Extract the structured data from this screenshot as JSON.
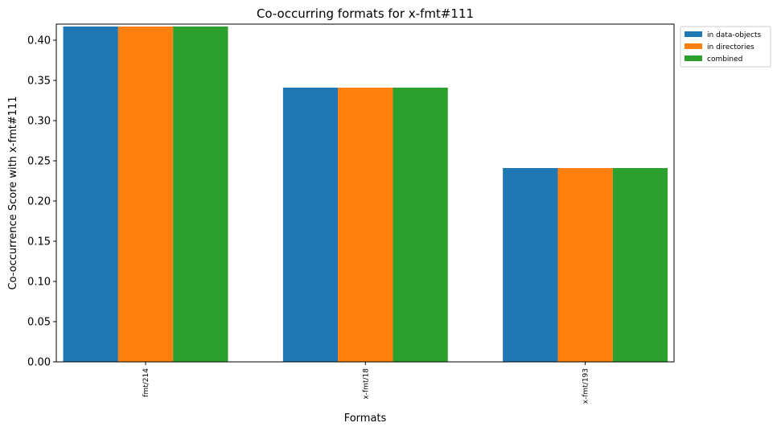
{
  "chart_data": {
    "type": "bar",
    "title": "Co-occurring formats for x-fmt#111",
    "xlabel": "Formats",
    "ylabel": "Co-occurrence Score with x-fmt#111",
    "categories": [
      "fmt/214",
      "x-fmt/18",
      "x-fmt/193"
    ],
    "series": [
      {
        "name": "in data-objects",
        "color": "#1f77b4",
        "values": [
          0.417,
          0.341,
          0.241
        ]
      },
      {
        "name": "in directories",
        "color": "#ff7f0e",
        "values": [
          0.417,
          0.341,
          0.241
        ]
      },
      {
        "name": "combined",
        "color": "#2ca02c",
        "values": [
          0.417,
          0.341,
          0.241
        ]
      }
    ],
    "ylim": [
      0,
      0.42
    ],
    "yticks": [
      "0.00",
      "0.05",
      "0.10",
      "0.15",
      "0.20",
      "0.25",
      "0.30",
      "0.35",
      "0.40"
    ],
    "grid": false,
    "legend": "upper-right-outside"
  }
}
